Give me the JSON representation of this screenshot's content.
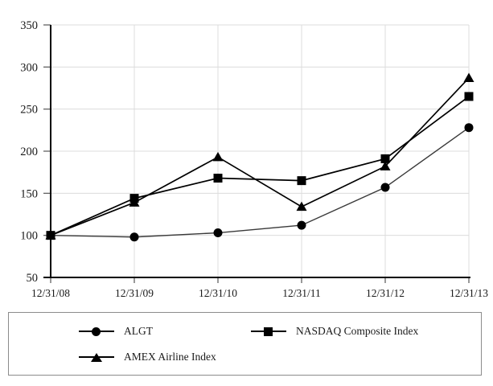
{
  "chart_data": {
    "type": "line",
    "title": "",
    "xlabel": "",
    "ylabel": "",
    "categories": [
      "12/31/08",
      "12/31/09",
      "12/31/10",
      "12/31/11",
      "12/31/12",
      "12/31/13"
    ],
    "series": [
      {
        "name": "ALGT",
        "marker": "circle",
        "z": 1,
        "values": [
          100,
          98,
          103,
          112,
          157,
          228
        ]
      },
      {
        "name": "NASDAQ Composite Index",
        "marker": "square",
        "z": 3,
        "values": [
          100,
          144,
          168,
          165,
          191,
          265
        ]
      },
      {
        "name": "AMEX Airline Index",
        "marker": "triangle",
        "z": 2,
        "values": [
          100,
          139,
          193,
          134,
          182,
          287
        ]
      }
    ],
    "ylim": [
      50,
      350
    ],
    "y_ticks": [
      350,
      300,
      250,
      200,
      150,
      100,
      50
    ],
    "grid": true,
    "legend_position": "bottom-box",
    "colors": {
      "series_line": "#000000",
      "algt_line": "#3a3a3a",
      "grid": "#dcdcdc",
      "axis": "#000000",
      "tick": "#555555",
      "text": "#1a1a1a",
      "legend_border": "#8c8c8c"
    }
  }
}
